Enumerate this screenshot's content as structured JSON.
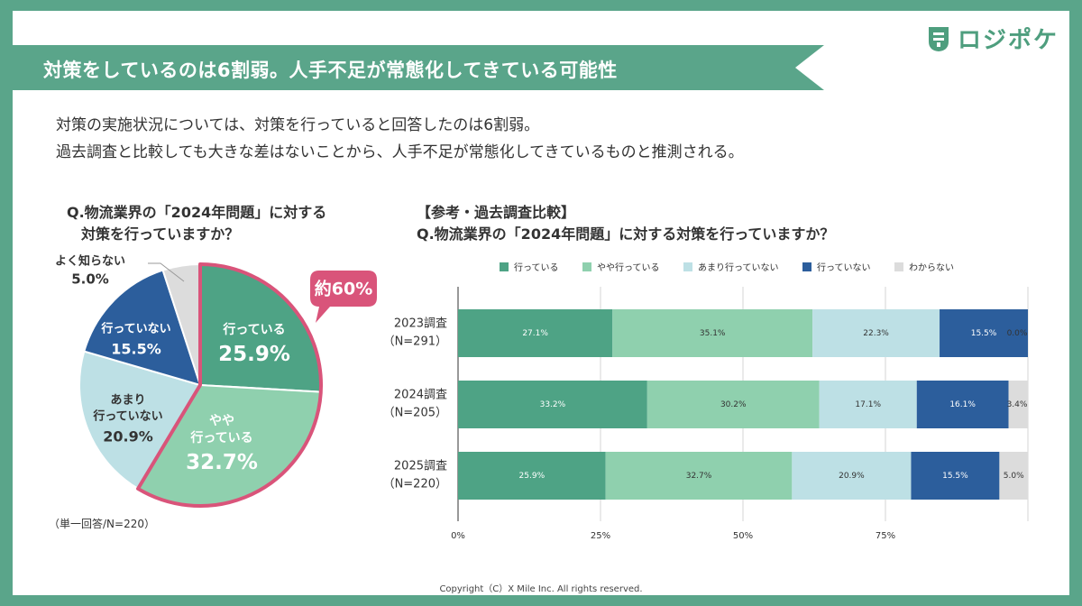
{
  "header": {
    "title": "対策をしているのは6割弱。人手不足が常態化してきている可能性",
    "logo_text": "ロジポケ"
  },
  "lead": {
    "line1": "対策の実施状況については、対策を行っていると回答したのは6割弱。",
    "line2": "過去調査と比較しても大きな差はないことから、人手不足が常態化してきているものと推測される。"
  },
  "pie_question": {
    "line1": "Q.物流業界の「2024年問題」に対する",
    "line2": "対策を行っていますか？"
  },
  "bar_question": {
    "line1": "【参考・過去調査比較】",
    "line2": "Q.物流業界の「2024年問題」に対する対策を行っていますか？"
  },
  "callout": "約60%",
  "footnote": "（単一回答/N=220）",
  "copyright": "Copyright（C）X Mile Inc. All rights reserved.",
  "colors": {
    "brand": "#5aa58a",
    "series": [
      "#4ea385",
      "#8fd0ae",
      "#bde0e5",
      "#2c5e9c",
      "#dcdcdc"
    ],
    "highlight": "#d9547a"
  },
  "chart_data": [
    {
      "type": "pie",
      "slices": [
        {
          "label_lines": [
            "行っている"
          ],
          "value": 25.9,
          "display": "25.9%"
        },
        {
          "label_lines": [
            "やや",
            "行っている"
          ],
          "value": 32.7,
          "display": "32.7%"
        },
        {
          "label_lines": [
            "あまり",
            "行っていない"
          ],
          "value": 20.9,
          "display": "20.9%"
        },
        {
          "label_lines": [
            "行っていない"
          ],
          "value": 15.5,
          "display": "15.5%"
        },
        {
          "label_lines": [
            "よく知らない"
          ],
          "value": 5.0,
          "display": "5.0%"
        }
      ]
    },
    {
      "type": "bar",
      "orientation": "horizontal",
      "stacked": true,
      "legend_position": "top",
      "categories": [
        {
          "label": "2023調査",
          "n": "（N=291）"
        },
        {
          "label": "2024調査",
          "n": "（N=205）"
        },
        {
          "label": "2025調査",
          "n": "（N=220）"
        }
      ],
      "series": [
        {
          "name": "行っている",
          "values": [
            27.1,
            33.2,
            25.9
          ]
        },
        {
          "name": "やや行っている",
          "values": [
            35.1,
            30.2,
            32.7
          ]
        },
        {
          "name": "あまり行っていない",
          "values": [
            22.3,
            17.1,
            20.9
          ]
        },
        {
          "name": "行っていない",
          "values": [
            15.5,
            16.1,
            15.5
          ]
        },
        {
          "name": "わからない",
          "values": [
            0.0,
            3.4,
            5.0
          ]
        }
      ],
      "xticks": [
        "0%",
        "25%",
        "50%",
        "75%"
      ],
      "xlim": [
        0,
        100
      ],
      "grid": true
    }
  ]
}
